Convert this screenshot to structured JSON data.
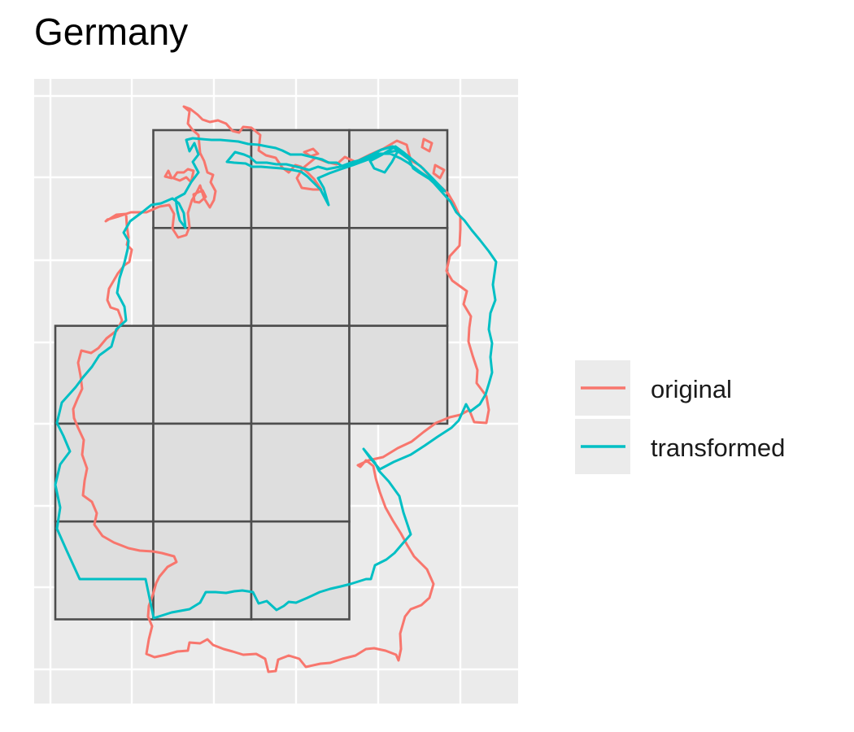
{
  "title": "Germany",
  "legend": {
    "items": [
      {
        "label": "original",
        "color": "#F8766D"
      },
      {
        "label": "transformed",
        "color": "#00BFC4"
      }
    ]
  },
  "style": {
    "panel_background": "#EBEBEB",
    "grid_color": "#FFFFFF",
    "cell_fill": "#DEDEDE",
    "cell_stroke": "#4D4D4D"
  },
  "grid": {
    "rows": 5,
    "columns": 4,
    "occupied_cells": [
      [
        1,
        0
      ],
      [
        2,
        0
      ],
      [
        3,
        0
      ],
      [
        1,
        1
      ],
      [
        2,
        1
      ],
      [
        3,
        1
      ],
      [
        0,
        2
      ],
      [
        1,
        2
      ],
      [
        2,
        2
      ],
      [
        3,
        2
      ],
      [
        0,
        3
      ],
      [
        1,
        3
      ],
      [
        2,
        3
      ],
      [
        0,
        4
      ],
      [
        1,
        4
      ],
      [
        2,
        4
      ]
    ]
  }
}
